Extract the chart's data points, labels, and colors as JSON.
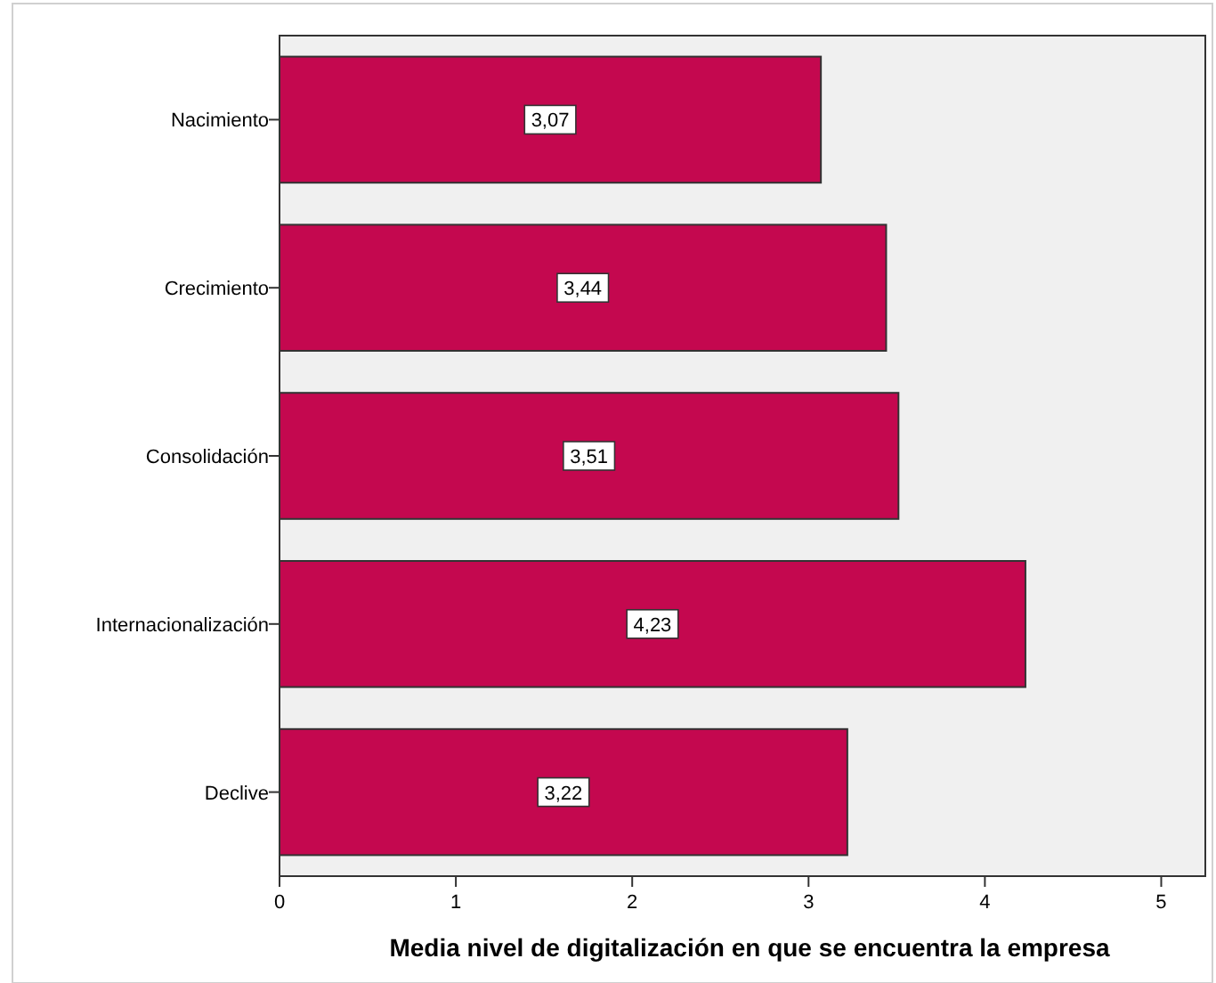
{
  "chart_data": {
    "type": "bar",
    "orientation": "horizontal",
    "xlabel": "Media nivel de digitalización en que se encuentra la empresa",
    "categories": [
      "Nacimiento",
      "Crecimiento",
      "Consolidación",
      "Internacionalización",
      "Declive"
    ],
    "values": [
      3.07,
      3.44,
      3.51,
      4.23,
      3.22
    ],
    "value_labels": [
      "3,07",
      "3,44",
      "3,51",
      "4,23",
      "3,22"
    ],
    "color": "#c4084f",
    "xlim": [
      0,
      5.25
    ],
    "xticks": [
      0,
      1,
      2,
      3,
      4,
      5
    ],
    "grid": false
  }
}
